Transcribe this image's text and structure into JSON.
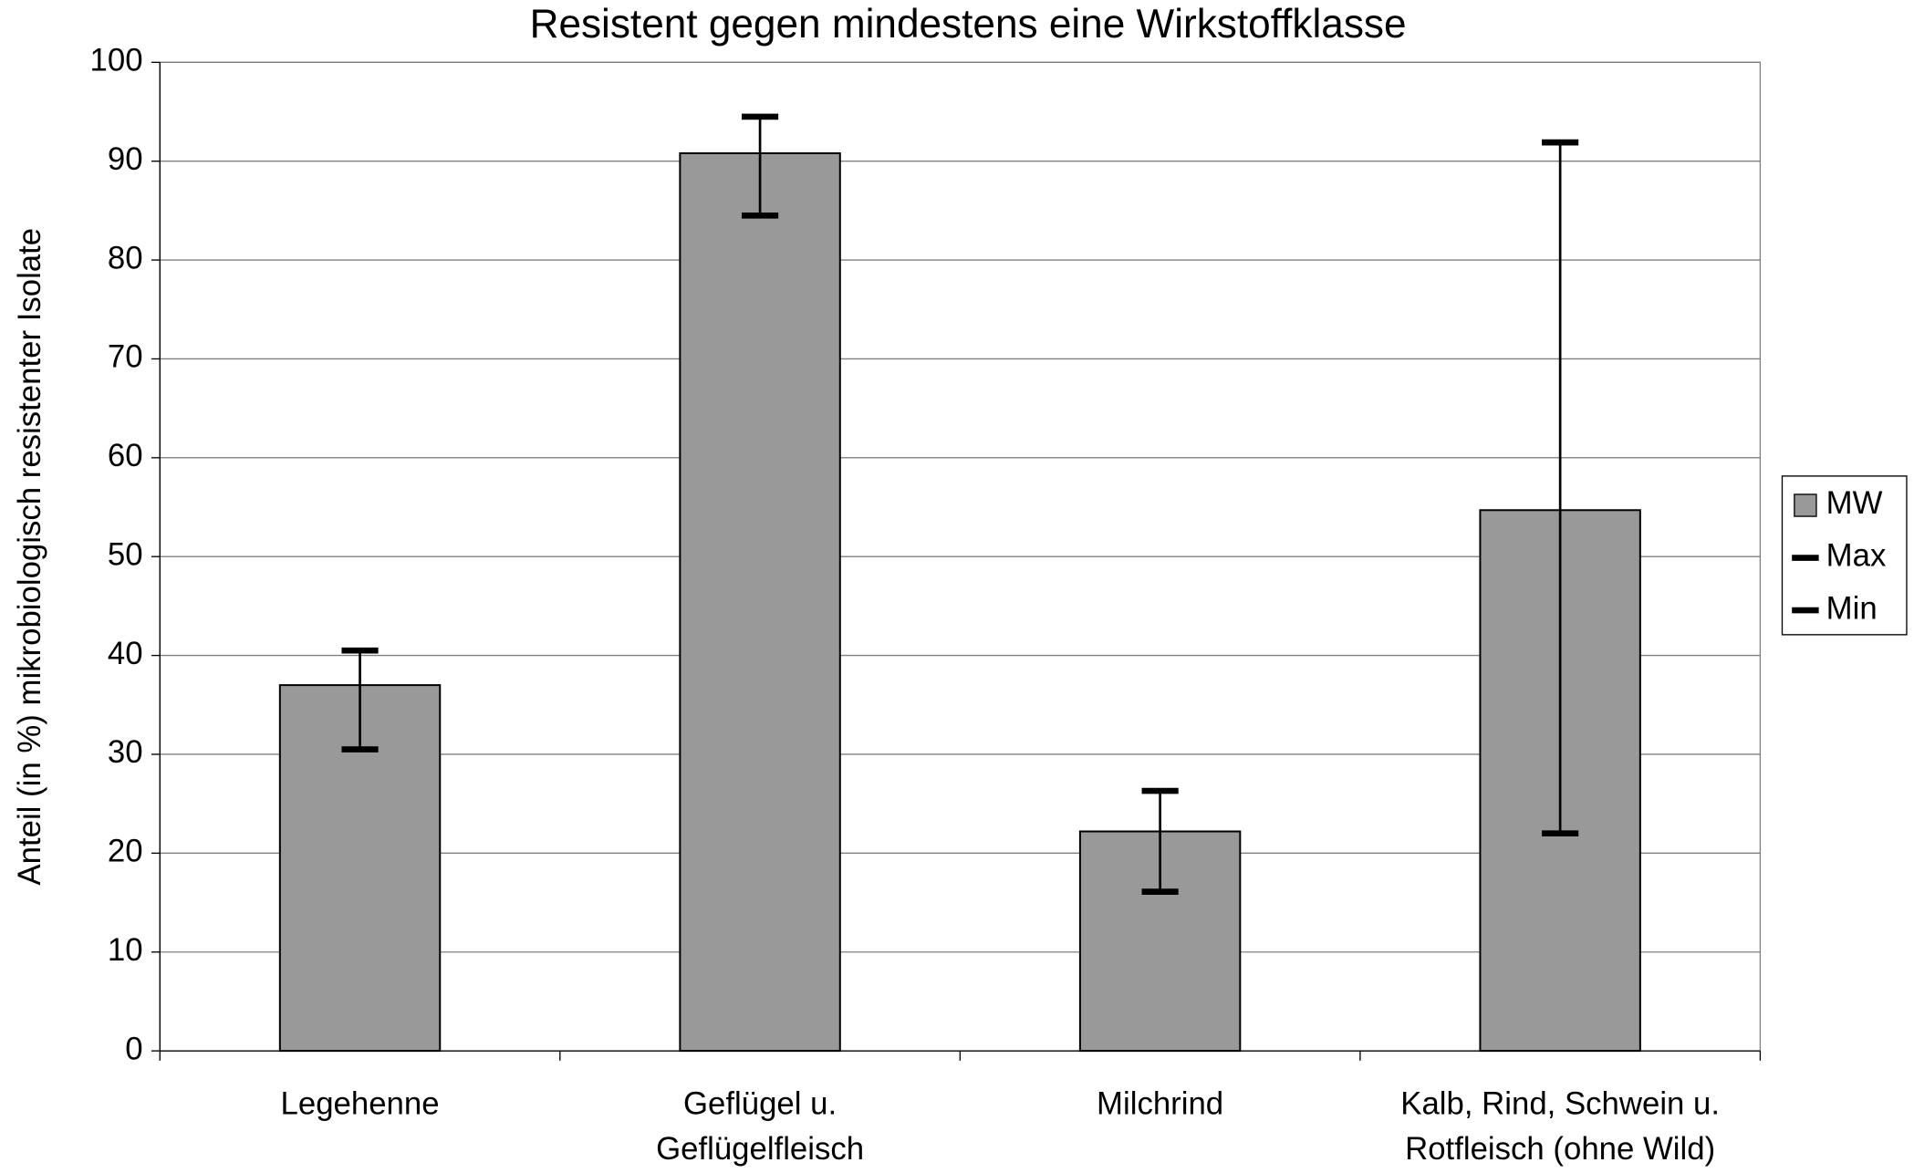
{
  "chart_data": {
    "type": "bar",
    "title": "Resistent gegen mindestens eine Wirkstoffklasse",
    "y_label": "Anteil (in %) mikrobiologisch resistenter Isolate",
    "categories": [
      [
        "Legehenne"
      ],
      [
        "Geflügel u.",
        "Geflügelfleisch"
      ],
      [
        "Milchrind"
      ],
      [
        "Kalb, Rind, Schwein u.",
        "Rotfleisch (ohne Wild)"
      ]
    ],
    "series": [
      {
        "name": "MW",
        "color": "#999999",
        "values": [
          37,
          90.8,
          22.2,
          54.7
        ]
      },
      {
        "name": "Max",
        "color": "#000000",
        "values": [
          40.5,
          94.5,
          26.3,
          91.9
        ]
      },
      {
        "name": "Min",
        "color": "#000000",
        "values": [
          30.5,
          84.5,
          16.1,
          22
        ]
      }
    ],
    "ylim": [
      0,
      100
    ],
    "yticks": [
      0,
      10,
      20,
      30,
      40,
      50,
      60,
      70,
      80,
      90,
      100
    ],
    "grid": true,
    "legend": "right"
  }
}
